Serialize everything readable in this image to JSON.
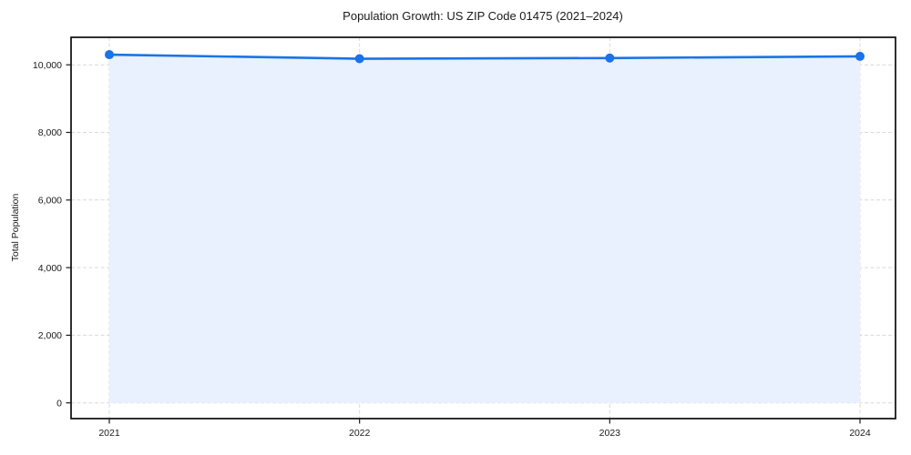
{
  "chart_data": {
    "type": "area",
    "title": "Population Growth: US ZIP Code 01475 (2021–2024)",
    "xlabel": "",
    "ylabel": "Total Population",
    "categories": [
      "2021",
      "2022",
      "2023",
      "2024"
    ],
    "series": [
      {
        "name": "Total Population",
        "values": [
          10300,
          10180,
          10200,
          10250
        ]
      }
    ],
    "ylim": [
      0,
      10000
    ],
    "yticks": [
      0,
      2000,
      4000,
      6000,
      8000,
      10000
    ],
    "ytick_labels": [
      "0",
      "2,000",
      "4,000",
      "6,000",
      "8,000",
      "10,000"
    ],
    "grid": true,
    "grid_style": "dashed",
    "legend_position": "none",
    "colors": {
      "line": "#1a73e8",
      "marker": "#1a73e8",
      "area_fill": "#e8f1fd",
      "gridline": "#d9d9d9",
      "spine": "#1a1a1a",
      "text": "#1a1a1a",
      "background": "#ffffff"
    }
  }
}
